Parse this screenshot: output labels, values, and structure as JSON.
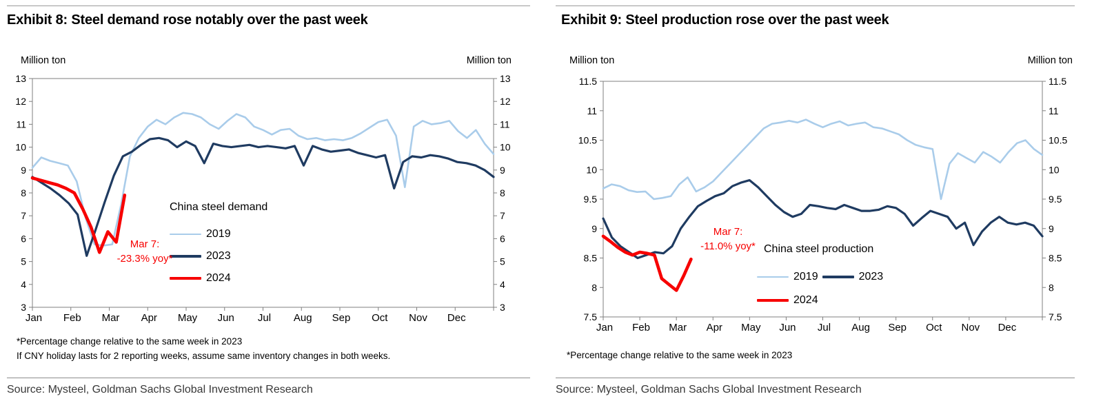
{
  "colors": {
    "blue_2019": "#A9CCEA",
    "navy_2023": "#1F3B61",
    "red_2024": "#F70000",
    "axis": "#7f7f7f"
  },
  "charts": [
    {
      "exhibit_title": "Exhibit 8: Steel demand rose notably over the past week",
      "y_axis_label_left": "Million ton",
      "y_axis_label_right": "Million ton",
      "legend_title": "China steel demand",
      "annotation": {
        "line1": "Mar 7:",
        "line2": "-23.3% yoy*"
      },
      "footnotes": [
        "*Percentage change relative to the same week in 2023",
        "If CNY holiday lasts for 2 reporting weeks, assume same inventory changes in both weeks."
      ],
      "source": "Source: Mysteel, Goldman Sachs Global Investment Research",
      "chart_data": {
        "type": "line",
        "title": "China steel demand",
        "ylabel": "Million ton",
        "ylim": [
          3,
          13
        ],
        "ytick_step": 1,
        "grid": false,
        "legend_position": "center",
        "x_axis": {
          "months": [
            "Jan",
            "Feb",
            "Mar",
            "Apr",
            "May",
            "Jun",
            "Jul",
            "Aug",
            "Sep",
            "Oct",
            "Nov",
            "Dec"
          ],
          "span_months": 12
        },
        "series": [
          {
            "name": "2019",
            "color": "#A9CCEA",
            "width": 2.6,
            "span_months": 12,
            "values": [
              9.1,
              9.55,
              9.4,
              9.3,
              9.2,
              8.5,
              6.9,
              5.75,
              5.7,
              5.75,
              7.5,
              9.6,
              10.4,
              10.9,
              11.2,
              11.0,
              11.3,
              11.5,
              11.45,
              11.3,
              11.0,
              10.8,
              11.15,
              11.45,
              11.3,
              10.9,
              10.75,
              10.55,
              10.75,
              10.8,
              10.5,
              10.35,
              10.4,
              10.3,
              10.35,
              10.3,
              10.4,
              10.6,
              10.85,
              11.1,
              11.2,
              10.5,
              8.25,
              10.9,
              11.15,
              11.0,
              11.05,
              11.15,
              10.7,
              10.4,
              10.75,
              10.15,
              9.7
            ]
          },
          {
            "name": "2023",
            "color": "#1F3B61",
            "width": 3.2,
            "span_months": 12,
            "values": [
              8.7,
              8.45,
              8.2,
              7.9,
              7.55,
              7.05,
              5.25,
              6.4,
              7.6,
              8.75,
              9.6,
              9.8,
              10.1,
              10.35,
              10.4,
              10.3,
              10.0,
              10.25,
              10.05,
              9.3,
              10.15,
              10.05,
              10.0,
              10.05,
              10.1,
              10.0,
              10.05,
              10.0,
              9.95,
              10.05,
              9.2,
              10.05,
              9.9,
              9.8,
              9.85,
              9.9,
              9.75,
              9.65,
              9.55,
              9.65,
              8.2,
              9.35,
              9.6,
              9.55,
              9.65,
              9.6,
              9.5,
              9.35,
              9.3,
              9.2,
              9.0,
              8.7
            ]
          },
          {
            "name": "2024",
            "color": "#F70000",
            "width": 4.6,
            "span_months": 2.4,
            "values": [
              8.65,
              8.55,
              8.45,
              8.35,
              8.2,
              8.0,
              7.3,
              6.5,
              5.4,
              6.3,
              5.85,
              7.9
            ]
          }
        ]
      }
    },
    {
      "exhibit_title": "Exhibit 9: Steel production rose over the past week",
      "y_axis_label_left": "Million ton",
      "y_axis_label_right": "Million ton",
      "legend_title": "China steel production",
      "annotation": {
        "line1": "Mar 7:",
        "line2": "-11.0% yoy*"
      },
      "footnotes": [
        "*Percentage change relative to the same week in 2023"
      ],
      "source": "Source: Mysteel, Goldman Sachs Global Investment Research",
      "chart_data": {
        "type": "line",
        "title": "China steel production",
        "ylabel": "Million ton",
        "ylim": [
          7.5,
          11.5
        ],
        "ytick_step": 0.5,
        "grid": false,
        "legend_position": "center",
        "x_axis": {
          "months": [
            "Jan",
            "Feb",
            "Mar",
            "Apr",
            "May",
            "Jun",
            "Jul",
            "Aug",
            "Sep",
            "Oct",
            "Nov",
            "Dec"
          ],
          "span_months": 12
        },
        "series": [
          {
            "name": "2019",
            "color": "#A9CCEA",
            "width": 2.6,
            "span_months": 12,
            "values": [
              9.68,
              9.75,
              9.72,
              9.65,
              9.62,
              9.63,
              9.5,
              9.52,
              9.55,
              9.75,
              9.87,
              9.63,
              9.7,
              9.8,
              9.95,
              10.1,
              10.25,
              10.4,
              10.55,
              10.7,
              10.78,
              10.8,
              10.83,
              10.8,
              10.85,
              10.78,
              10.72,
              10.78,
              10.82,
              10.75,
              10.78,
              10.8,
              10.72,
              10.7,
              10.65,
              10.6,
              10.5,
              10.42,
              10.38,
              10.35,
              9.5,
              10.1,
              10.28,
              10.2,
              10.12,
              10.3,
              10.22,
              10.12,
              10.3,
              10.45,
              10.5,
              10.35,
              10.25
            ]
          },
          {
            "name": "2023",
            "color": "#1F3B61",
            "width": 3.2,
            "span_months": 12,
            "values": [
              9.17,
              8.85,
              8.7,
              8.6,
              8.5,
              8.55,
              8.6,
              8.58,
              8.7,
              9.0,
              9.2,
              9.38,
              9.47,
              9.55,
              9.6,
              9.72,
              9.78,
              9.82,
              9.7,
              9.55,
              9.4,
              9.28,
              9.2,
              9.25,
              9.4,
              9.38,
              9.35,
              9.33,
              9.4,
              9.35,
              9.3,
              9.3,
              9.32,
              9.38,
              9.35,
              9.25,
              9.05,
              9.18,
              9.3,
              9.25,
              9.2,
              9.0,
              9.1,
              8.72,
              8.95,
              9.1,
              9.2,
              9.1,
              9.07,
              9.1,
              9.05,
              8.87
            ]
          },
          {
            "name": "2024",
            "color": "#F70000",
            "width": 4.6,
            "span_months": 2.4,
            "values": [
              8.87,
              8.78,
              8.68,
              8.6,
              8.55,
              8.6,
              8.58,
              8.55,
              8.15,
              8.05,
              7.95,
              8.2,
              8.48
            ]
          }
        ]
      }
    }
  ]
}
